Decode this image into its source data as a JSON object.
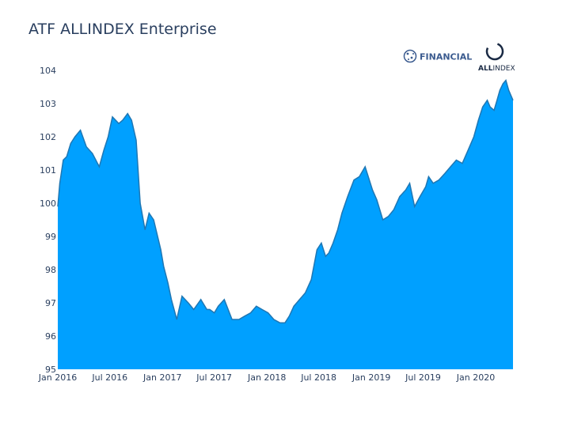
{
  "title": "ATF ALLINDEX Enterprise",
  "logos": {
    "financial_label": "FINANCIAL",
    "allindex_all": "ALL",
    "allindex_index": "INDEX"
  },
  "colors": {
    "fill": "#00a0ff",
    "line": "#1f77b4",
    "text": "#2a3f5f",
    "logo_blue": "#3b5b8f"
  },
  "chart_data": {
    "type": "area",
    "title": "ATF ALLINDEX Enterprise",
    "xlabel": "",
    "ylabel": "",
    "ylim": [
      95,
      104
    ],
    "xlim": [
      "2016-01-01",
      "2020-05-10"
    ],
    "grid": false,
    "yticks": [
      "95",
      "96",
      "97",
      "98",
      "99",
      "100",
      "101",
      "102",
      "103",
      "104"
    ],
    "xticks": [
      {
        "date": "2016-01-01",
        "label": "Jan 2016"
      },
      {
        "date": "2016-07-01",
        "label": "Jul 2016"
      },
      {
        "date": "2017-01-01",
        "label": "Jan 2017"
      },
      {
        "date": "2017-07-01",
        "label": "Jul 2017"
      },
      {
        "date": "2018-01-01",
        "label": "Jan 2018"
      },
      {
        "date": "2018-07-01",
        "label": "Jul 2018"
      },
      {
        "date": "2019-01-01",
        "label": "Jan 2019"
      },
      {
        "date": "2019-07-01",
        "label": "Jul 2019"
      },
      {
        "date": "2020-01-01",
        "label": "Jan 2020"
      }
    ],
    "x": [
      "2016-01-01",
      "2016-01-08",
      "2016-01-20",
      "2016-02-01",
      "2016-02-15",
      "2016-03-01",
      "2016-03-20",
      "2016-04-10",
      "2016-05-01",
      "2016-05-25",
      "2016-06-10",
      "2016-06-25",
      "2016-07-10",
      "2016-08-01",
      "2016-08-15",
      "2016-09-01",
      "2016-09-15",
      "2016-10-01",
      "2016-10-15",
      "2016-11-01",
      "2016-11-15",
      "2016-12-01",
      "2016-12-15",
      "2016-12-26",
      "2017-01-05",
      "2017-01-20",
      "2017-02-01",
      "2017-02-20",
      "2017-03-10",
      "2017-04-01",
      "2017-04-20",
      "2017-05-15",
      "2017-06-05",
      "2017-06-15",
      "2017-07-01",
      "2017-07-15",
      "2017-08-05",
      "2017-09-01",
      "2017-09-25",
      "2017-10-15",
      "2017-11-05",
      "2017-11-25",
      "2017-12-15",
      "2018-01-05",
      "2018-01-25",
      "2018-02-15",
      "2018-03-05",
      "2018-03-20",
      "2018-04-05",
      "2018-04-25",
      "2018-05-15",
      "2018-06-05",
      "2018-06-25",
      "2018-07-10",
      "2018-07-25",
      "2018-08-05",
      "2018-08-20",
      "2018-09-05",
      "2018-09-20",
      "2018-10-10",
      "2018-11-01",
      "2018-11-20",
      "2018-12-10",
      "2019-01-05",
      "2019-01-20",
      "2019-02-10",
      "2019-03-01",
      "2019-03-20",
      "2019-04-10",
      "2019-05-01",
      "2019-05-15",
      "2019-06-01",
      "2019-06-20",
      "2019-07-10",
      "2019-07-20",
      "2019-08-05",
      "2019-08-25",
      "2019-09-15",
      "2019-10-05",
      "2019-10-25",
      "2019-11-15",
      "2019-12-05",
      "2019-12-25",
      "2020-01-10",
      "2020-01-25",
      "2020-02-10",
      "2020-02-20",
      "2020-03-05",
      "2020-03-15",
      "2020-03-25",
      "2020-04-05",
      "2020-04-15",
      "2020-04-25",
      "2020-05-05",
      "2020-05-10"
    ],
    "series": [
      {
        "values": [
          99.9,
          100.6,
          101.3,
          101.4,
          101.8,
          102.0,
          102.2,
          101.7,
          101.5,
          101.1,
          101.6,
          102.0,
          102.6,
          102.4,
          102.5,
          102.7,
          102.5,
          101.9,
          100.0,
          99.2,
          99.7,
          99.5,
          99.0,
          98.6,
          98.1,
          97.6,
          97.1,
          96.5,
          97.2,
          97.0,
          96.8,
          97.1,
          96.8,
          96.8,
          96.7,
          96.9,
          97.1,
          96.5,
          96.5,
          96.6,
          96.7,
          96.9,
          96.8,
          96.7,
          96.5,
          96.4,
          96.4,
          96.6,
          96.9,
          97.1,
          97.3,
          97.7,
          98.6,
          98.8,
          98.4,
          98.5,
          98.8,
          99.2,
          99.7,
          100.2,
          100.7,
          100.8,
          101.1,
          100.4,
          100.1,
          99.5,
          99.6,
          99.8,
          100.2,
          100.4,
          100.6,
          99.9,
          100.2,
          100.5,
          100.8,
          100.6,
          100.7,
          100.9,
          101.1,
          101.3,
          101.2,
          101.6,
          102.0,
          102.5,
          102.9,
          103.1,
          102.9,
          102.8,
          103.1,
          103.4,
          103.6,
          103.7,
          103.4,
          103.2,
          103.1
        ]
      }
    ]
  }
}
